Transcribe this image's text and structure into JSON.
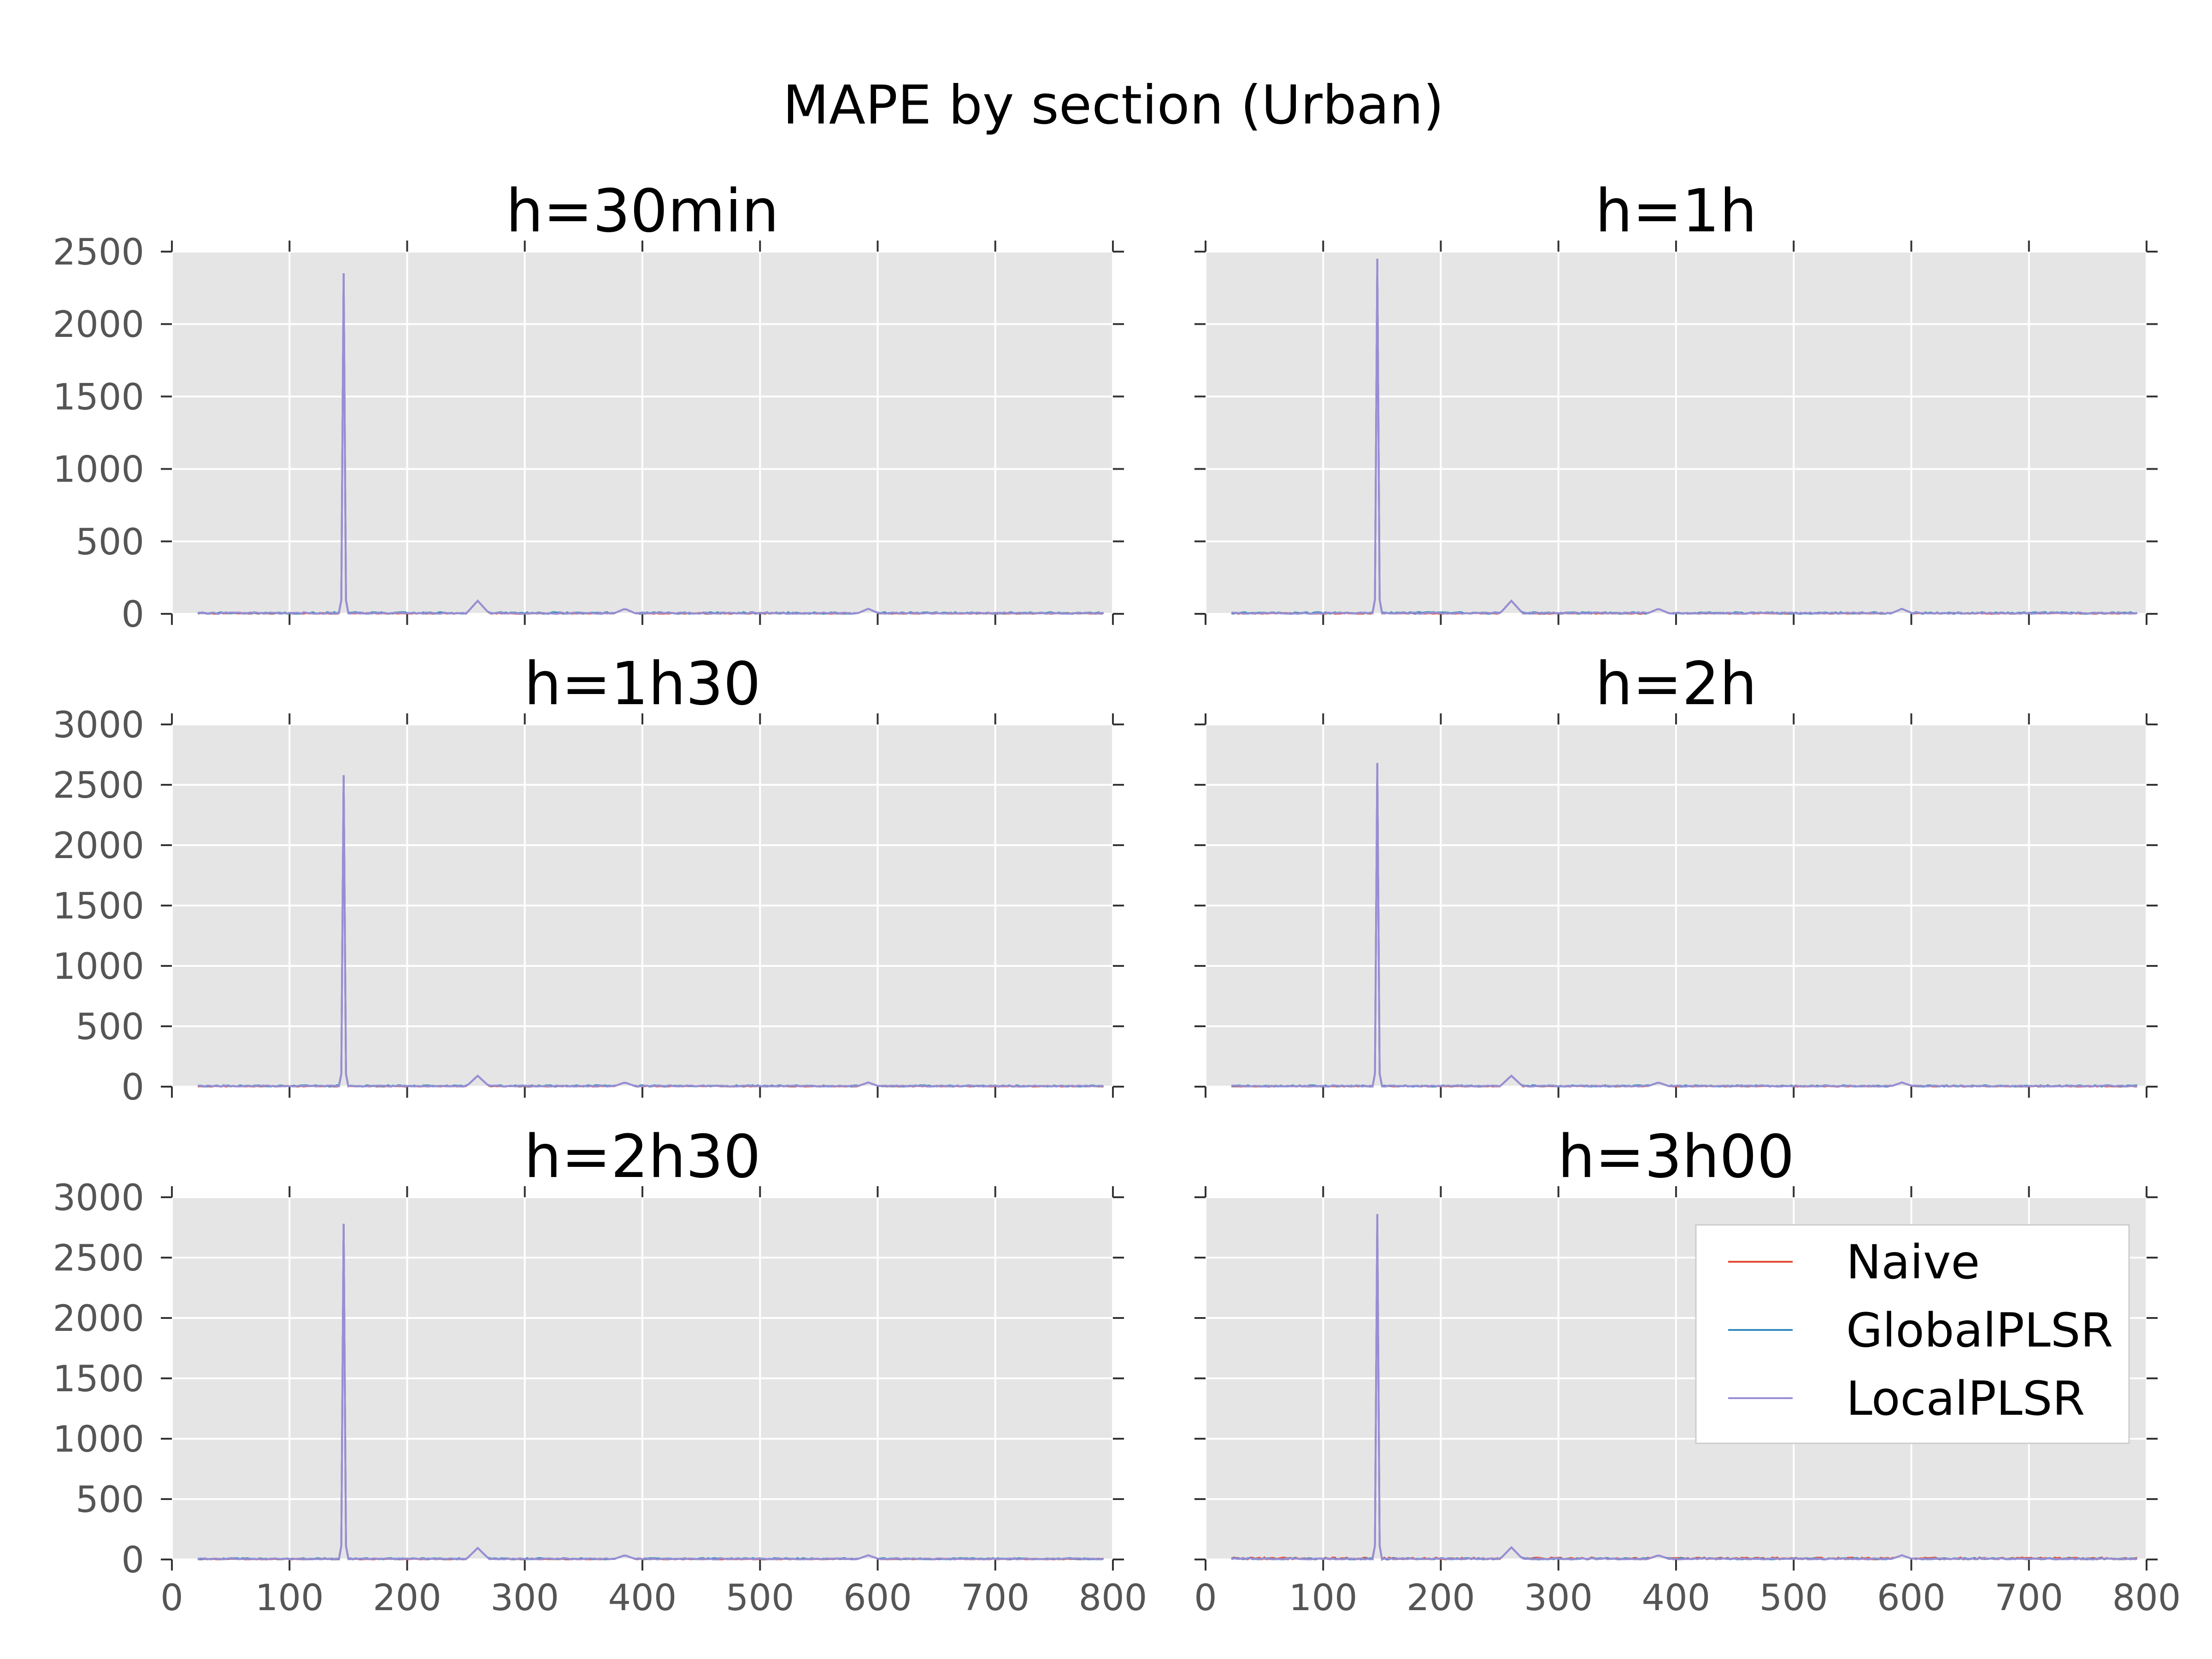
{
  "figure": {
    "title": "MAPE by section (Urban)"
  },
  "colors": {
    "background": "#E5E5E5",
    "grid": "#FFFFFF",
    "Naive": "#E24A33",
    "GlobalPLSR": "#348ABD",
    "LocalPLSR": "#988ED5"
  },
  "legend": {
    "placement": "upper-right of h=3h00 panel",
    "entries": [
      "Naive",
      "GlobalPLSR",
      "LocalPLSR"
    ]
  },
  "chart_data": [
    {
      "type": "line",
      "title": "h=30min",
      "xlim": [
        0,
        800
      ],
      "ylim": [
        0,
        2500
      ],
      "xticks": [
        0,
        100,
        200,
        300,
        400,
        500,
        600,
        700,
        800
      ],
      "yticks": [
        0,
        500,
        1000,
        1500,
        2000,
        2500
      ],
      "show_xtick_labels": false,
      "grid": true,
      "peak": {
        "x": 146,
        "y": 2350
      },
      "minor_bumps": [
        {
          "x": 260,
          "y": 90
        },
        {
          "x": 385,
          "y": 35
        },
        {
          "x": 592,
          "y": 35
        }
      ],
      "series": [
        {
          "name": "Naive"
        },
        {
          "name": "GlobalPLSR"
        },
        {
          "name": "LocalPLSR"
        }
      ]
    },
    {
      "type": "line",
      "title": "h=1h",
      "xlim": [
        0,
        800
      ],
      "ylim": [
        0,
        2500
      ],
      "xticks": [
        0,
        100,
        200,
        300,
        400,
        500,
        600,
        700,
        800
      ],
      "yticks": [
        0,
        500,
        1000,
        1500,
        2000,
        2500
      ],
      "show_xtick_labels": false,
      "show_ytick_labels": false,
      "grid": true,
      "peak": {
        "x": 146,
        "y": 2450
      },
      "minor_bumps": [
        {
          "x": 260,
          "y": 90
        },
        {
          "x": 385,
          "y": 35
        },
        {
          "x": 592,
          "y": 35
        }
      ],
      "series": [
        {
          "name": "Naive"
        },
        {
          "name": "GlobalPLSR"
        },
        {
          "name": "LocalPLSR"
        }
      ]
    },
    {
      "type": "line",
      "title": "h=1h30",
      "xlim": [
        0,
        800
      ],
      "ylim": [
        0,
        3000
      ],
      "xticks": [
        0,
        100,
        200,
        300,
        400,
        500,
        600,
        700,
        800
      ],
      "yticks": [
        0,
        500,
        1000,
        1500,
        2000,
        2500,
        3000
      ],
      "show_xtick_labels": false,
      "grid": true,
      "peak": {
        "x": 146,
        "y": 2580
      },
      "minor_bumps": [
        {
          "x": 260,
          "y": 90
        },
        {
          "x": 385,
          "y": 35
        },
        {
          "x": 592,
          "y": 35
        }
      ],
      "series": [
        {
          "name": "Naive"
        },
        {
          "name": "GlobalPLSR"
        },
        {
          "name": "LocalPLSR"
        }
      ]
    },
    {
      "type": "line",
      "title": "h=2h",
      "xlim": [
        0,
        800
      ],
      "ylim": [
        0,
        3000
      ],
      "xticks": [
        0,
        100,
        200,
        300,
        400,
        500,
        600,
        700,
        800
      ],
      "yticks": [
        0,
        500,
        1000,
        1500,
        2000,
        2500,
        3000
      ],
      "show_xtick_labels": false,
      "show_ytick_labels": false,
      "grid": true,
      "peak": {
        "x": 146,
        "y": 2680
      },
      "minor_bumps": [
        {
          "x": 260,
          "y": 90
        },
        {
          "x": 385,
          "y": 35
        },
        {
          "x": 592,
          "y": 35
        }
      ],
      "series": [
        {
          "name": "Naive"
        },
        {
          "name": "GlobalPLSR"
        },
        {
          "name": "LocalPLSR"
        }
      ]
    },
    {
      "type": "line",
      "title": "h=2h30",
      "xlim": [
        0,
        800
      ],
      "ylim": [
        0,
        3000
      ],
      "xticks": [
        0,
        100,
        200,
        300,
        400,
        500,
        600,
        700,
        800
      ],
      "yticks": [
        0,
        500,
        1000,
        1500,
        2000,
        2500,
        3000
      ],
      "grid": true,
      "peak": {
        "x": 146,
        "y": 2780
      },
      "minor_bumps": [
        {
          "x": 260,
          "y": 95
        },
        {
          "x": 385,
          "y": 35
        },
        {
          "x": 592,
          "y": 35
        }
      ],
      "series": [
        {
          "name": "Naive"
        },
        {
          "name": "GlobalPLSR"
        },
        {
          "name": "LocalPLSR"
        }
      ]
    },
    {
      "type": "line",
      "title": "h=3h00",
      "xlim": [
        0,
        800
      ],
      "ylim": [
        0,
        3000
      ],
      "xticks": [
        0,
        100,
        200,
        300,
        400,
        500,
        600,
        700,
        800
      ],
      "yticks": [
        0,
        500,
        1000,
        1500,
        2000,
        2500,
        3000
      ],
      "show_ytick_labels": false,
      "grid": true,
      "legend": true,
      "peak": {
        "x": 146,
        "y": 2860
      },
      "minor_bumps": [
        {
          "x": 260,
          "y": 100
        },
        {
          "x": 385,
          "y": 35
        },
        {
          "x": 592,
          "y": 35
        }
      ],
      "series": [
        {
          "name": "Naive"
        },
        {
          "name": "GlobalPLSR"
        },
        {
          "name": "LocalPLSR"
        }
      ]
    }
  ]
}
